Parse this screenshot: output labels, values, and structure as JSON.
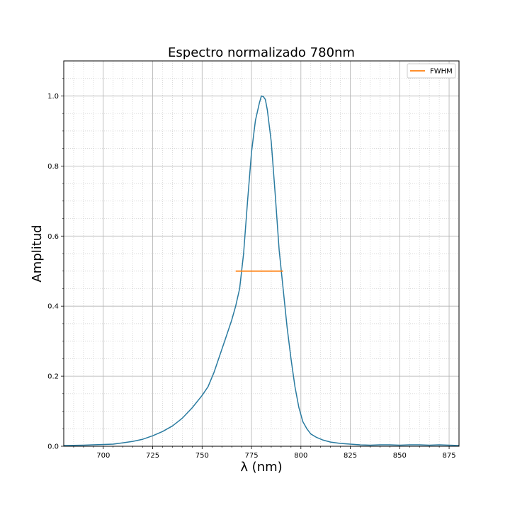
{
  "chart_data": {
    "type": "line",
    "title": "Espectro normalizado 780nm",
    "xlabel": "λ (nm)",
    "ylabel": "Amplitud",
    "xlim": [
      680,
      880
    ],
    "ylim": [
      0,
      1.1
    ],
    "x_ticks": [
      700,
      725,
      750,
      775,
      800,
      825,
      850,
      875
    ],
    "y_ticks": [
      0.0,
      0.2,
      0.4,
      0.6,
      0.8,
      1.0
    ],
    "grid": "major and minor",
    "legend_position": "top-right",
    "colors": {
      "spectrum": "#2a7ba0",
      "fwhm": "#ff7f0e",
      "grid_major": "#b0b0b0",
      "grid_minor": "#cccccc"
    },
    "series": [
      {
        "x": [
          680,
          690,
          700,
          705,
          710,
          715,
          720,
          725,
          730,
          735,
          740,
          745,
          750,
          753,
          756,
          759,
          762,
          765,
          767,
          769,
          771,
          773,
          775,
          777,
          779,
          780,
          781,
          782,
          783,
          785,
          787,
          789,
          791,
          793,
          795,
          797,
          799,
          801,
          803,
          805,
          808,
          811,
          815,
          820,
          825,
          830,
          835,
          840,
          845,
          850,
          855,
          860,
          865,
          870,
          875,
          880
        ],
        "values": [
          0.002,
          0.003,
          0.005,
          0.006,
          0.01,
          0.014,
          0.02,
          0.03,
          0.042,
          0.058,
          0.08,
          0.11,
          0.145,
          0.17,
          0.21,
          0.26,
          0.31,
          0.36,
          0.4,
          0.45,
          0.55,
          0.7,
          0.84,
          0.93,
          0.98,
          1.0,
          0.998,
          0.99,
          0.96,
          0.87,
          0.72,
          0.56,
          0.45,
          0.34,
          0.25,
          0.17,
          0.11,
          0.07,
          0.05,
          0.035,
          0.025,
          0.018,
          0.012,
          0.008,
          0.006,
          0.004,
          0.003,
          0.004,
          0.004,
          0.003,
          0.004,
          0.004,
          0.003,
          0.004,
          0.003,
          0.002
        ]
      },
      {
        "name": "FWHM",
        "x": [
          767,
          791
        ],
        "values": [
          0.5,
          0.5
        ]
      }
    ]
  }
}
